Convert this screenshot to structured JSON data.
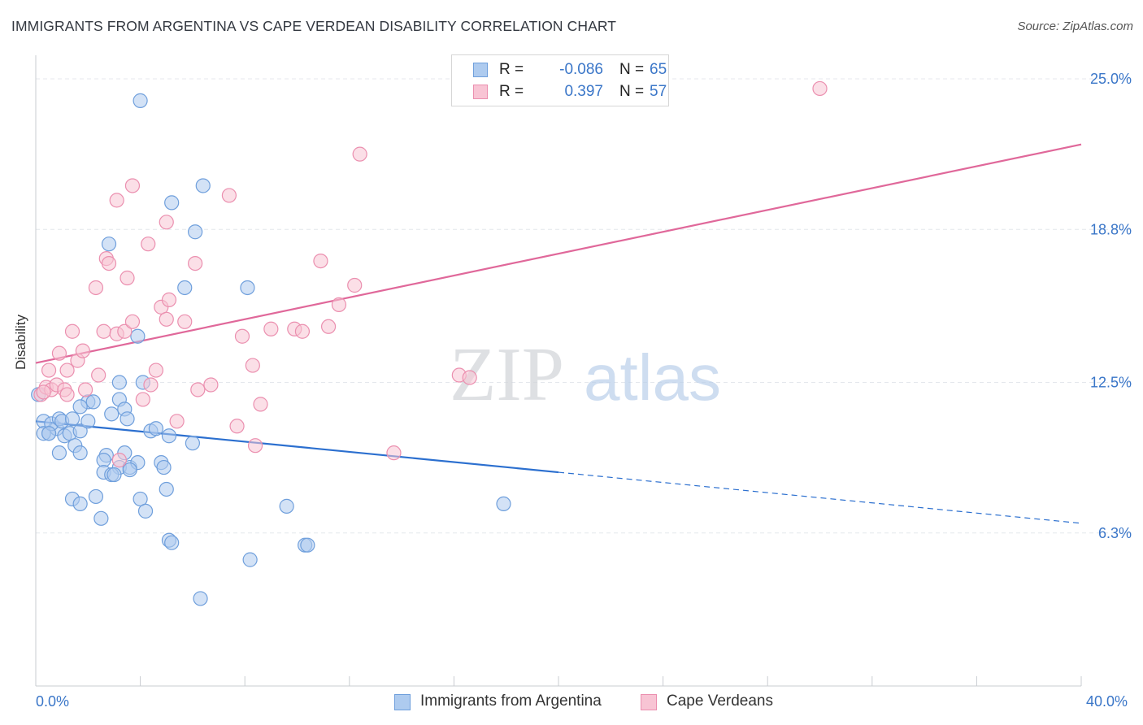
{
  "title": "IMMIGRANTS FROM ARGENTINA VS CAPE VERDEAN DISABILITY CORRELATION CHART",
  "source": "Source: ZipAtlas.com",
  "watermark": {
    "zip": "ZIP",
    "atlas": "atlas"
  },
  "legend_top": {
    "rows": [
      {
        "r_label": "R =",
        "r_value": "-0.086",
        "n_label": "N =",
        "n_value": "65"
      },
      {
        "r_label": "R =",
        "r_value": "0.397",
        "n_label": "N =",
        "n_value": "57"
      }
    ]
  },
  "legend_bottom": {
    "items": [
      {
        "label": "Immigrants from Argentina"
      },
      {
        "label": "Cape Verdeans"
      }
    ]
  },
  "colors": {
    "blue_fill": "#aecbef",
    "blue_stroke": "#6f9fdc",
    "blue_line": "#2b6fcf",
    "pink_fill": "#f8c4d4",
    "pink_stroke": "#eb8faf",
    "pink_line": "#e0689a",
    "grid": "#e4e7ec",
    "axis_text": "#3a76c8"
  },
  "chart_data": {
    "type": "scatter",
    "title": "IMMIGRANTS FROM ARGENTINA VS CAPE VERDEAN DISABILITY CORRELATION CHART",
    "xlabel": "",
    "ylabel": "Disability",
    "xlim": [
      0,
      40
    ],
    "ylim": [
      0,
      26.3
    ],
    "x_tick_labels": [
      {
        "value": 0,
        "label": "0.0%"
      },
      {
        "value": 40,
        "label": "40.0%"
      }
    ],
    "y_tick_labels": [
      {
        "value": 6.3,
        "label": "6.3%"
      },
      {
        "value": 12.5,
        "label": "12.5%"
      },
      {
        "value": 18.8,
        "label": "18.8%"
      },
      {
        "value": 25.0,
        "label": "25.0%"
      }
    ],
    "series": [
      {
        "name": "Immigrants from Argentina",
        "color": "blue",
        "r": -0.086,
        "n": 65,
        "trend": {
          "x0": 0,
          "y0": 10.9,
          "x1": 20,
          "y1": 8.8,
          "dashed_to_x": 40,
          "dashed_to_y": 6.7
        },
        "points": [
          [
            0.3,
            10.9
          ],
          [
            0.5,
            10.4
          ],
          [
            0.3,
            10.4
          ],
          [
            0.8,
            10.6
          ],
          [
            0.6,
            10.8
          ],
          [
            0.9,
            11.0
          ],
          [
            1.1,
            10.3
          ],
          [
            1.3,
            10.4
          ],
          [
            1.7,
            10.5
          ],
          [
            1.0,
            10.9
          ],
          [
            1.4,
            11.0
          ],
          [
            2.0,
            11.7
          ],
          [
            2.2,
            11.7
          ],
          [
            2.0,
            10.9
          ],
          [
            2.9,
            11.2
          ],
          [
            3.2,
            11.8
          ],
          [
            3.2,
            12.5
          ],
          [
            3.4,
            11.4
          ],
          [
            3.5,
            11.0
          ],
          [
            3.9,
            14.4
          ],
          [
            4.1,
            12.5
          ],
          [
            1.5,
            9.9
          ],
          [
            1.7,
            9.6
          ],
          [
            2.7,
            9.5
          ],
          [
            2.6,
            9.3
          ],
          [
            3.2,
            9.0
          ],
          [
            3.4,
            9.6
          ],
          [
            3.6,
            9.0
          ],
          [
            3.9,
            9.2
          ],
          [
            2.6,
            8.8
          ],
          [
            2.9,
            8.7
          ],
          [
            3.0,
            8.7
          ],
          [
            3.6,
            8.9
          ],
          [
            4.4,
            10.5
          ],
          [
            4.6,
            10.6
          ],
          [
            5.1,
            10.3
          ],
          [
            6.0,
            10.0
          ],
          [
            4.8,
            9.2
          ],
          [
            5.0,
            8.1
          ],
          [
            4.0,
            7.7
          ],
          [
            4.2,
            7.2
          ],
          [
            1.4,
            7.7
          ],
          [
            1.7,
            7.5
          ],
          [
            2.3,
            7.8
          ],
          [
            2.5,
            6.9
          ],
          [
            5.7,
            16.4
          ],
          [
            4.9,
            9.0
          ],
          [
            5.1,
            6.0
          ],
          [
            5.2,
            5.9
          ],
          [
            6.4,
            20.6
          ],
          [
            6.1,
            18.7
          ],
          [
            5.2,
            19.9
          ],
          [
            2.8,
            18.2
          ],
          [
            4.0,
            24.1
          ],
          [
            8.1,
            16.4
          ],
          [
            8.2,
            5.2
          ],
          [
            9.6,
            7.4
          ],
          [
            10.3,
            5.8
          ],
          [
            10.4,
            5.8
          ],
          [
            6.3,
            3.6
          ],
          [
            17.9,
            7.5
          ],
          [
            1.7,
            11.5
          ],
          [
            0.9,
            9.6
          ],
          [
            0.5,
            10.4
          ],
          [
            0.1,
            12.0
          ]
        ]
      },
      {
        "name": "Cape Verdeans",
        "color": "pink",
        "r": 0.397,
        "n": 57,
        "trend": {
          "x0": 0,
          "y0": 13.3,
          "x1": 40,
          "y1": 22.3
        },
        "points": [
          [
            0.2,
            12.0
          ],
          [
            0.4,
            12.3
          ],
          [
            0.6,
            12.2
          ],
          [
            0.8,
            12.4
          ],
          [
            1.1,
            12.2
          ],
          [
            0.5,
            13.0
          ],
          [
            1.2,
            13.0
          ],
          [
            1.6,
            13.4
          ],
          [
            1.8,
            13.8
          ],
          [
            0.9,
            13.7
          ],
          [
            1.4,
            14.6
          ],
          [
            1.9,
            12.2
          ],
          [
            2.4,
            12.8
          ],
          [
            2.6,
            14.6
          ],
          [
            3.1,
            14.5
          ],
          [
            3.4,
            14.6
          ],
          [
            3.5,
            16.8
          ],
          [
            3.7,
            15.0
          ],
          [
            4.4,
            12.4
          ],
          [
            4.6,
            13.0
          ],
          [
            4.1,
            11.8
          ],
          [
            4.8,
            15.6
          ],
          [
            5.0,
            15.1
          ],
          [
            5.1,
            15.9
          ],
          [
            5.4,
            10.9
          ],
          [
            5.7,
            15.0
          ],
          [
            6.1,
            17.4
          ],
          [
            6.2,
            12.2
          ],
          [
            6.7,
            12.4
          ],
          [
            2.3,
            16.4
          ],
          [
            2.7,
            17.6
          ],
          [
            2.8,
            17.4
          ],
          [
            3.7,
            20.6
          ],
          [
            3.1,
            20.0
          ],
          [
            4.3,
            18.2
          ],
          [
            5.0,
            19.1
          ],
          [
            7.4,
            20.2
          ],
          [
            7.7,
            10.7
          ],
          [
            7.9,
            14.4
          ],
          [
            8.3,
            13.2
          ],
          [
            8.4,
            9.9
          ],
          [
            8.6,
            11.6
          ],
          [
            9.0,
            14.7
          ],
          [
            9.9,
            14.7
          ],
          [
            10.2,
            14.6
          ],
          [
            10.9,
            17.5
          ],
          [
            11.2,
            14.8
          ],
          [
            11.6,
            15.7
          ],
          [
            12.2,
            16.5
          ],
          [
            12.4,
            21.9
          ],
          [
            13.7,
            9.6
          ],
          [
            16.2,
            12.8
          ],
          [
            16.6,
            12.7
          ],
          [
            30.0,
            24.6
          ],
          [
            1.2,
            12.0
          ],
          [
            0.3,
            12.1
          ],
          [
            3.2,
            9.3
          ]
        ]
      }
    ]
  }
}
